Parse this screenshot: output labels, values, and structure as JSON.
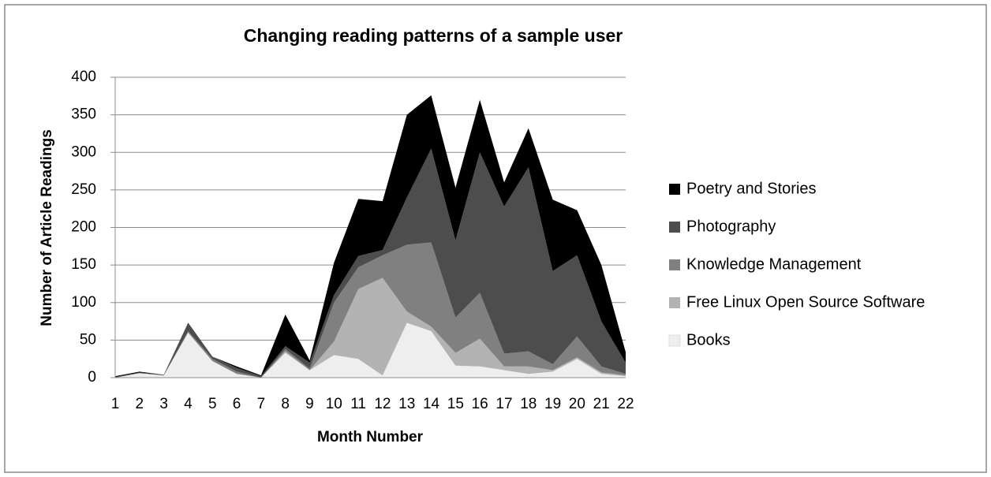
{
  "chart_data": {
    "type": "stacked-area",
    "title": "Changing reading patterns of a sample user",
    "x_label": "Month Number",
    "y_label": "Number of Article Readings",
    "categories": [
      "1",
      "2",
      "3",
      "4",
      "5",
      "6",
      "7",
      "8",
      "9",
      "10",
      "11",
      "12",
      "13",
      "14",
      "15",
      "16",
      "17",
      "18",
      "19",
      "20",
      "21",
      "22"
    ],
    "series": [
      {
        "name": "Books",
        "color": "#eeeeee",
        "values": [
          0,
          6,
          3,
          60,
          22,
          5,
          0,
          33,
          10,
          30,
          25,
          3,
          73,
          62,
          16,
          15,
          10,
          5,
          8,
          25,
          5,
          2
        ]
      },
      {
        "name": "Free Linux Open Source Software",
        "color": "#b3b3b3",
        "values": [
          0,
          0,
          0,
          0,
          0,
          0,
          0,
          2,
          0,
          18,
          93,
          130,
          15,
          6,
          17,
          37,
          5,
          10,
          2,
          2,
          2,
          1
        ]
      },
      {
        "name": "Knowledge Management",
        "color": "#808080",
        "values": [
          0,
          0,
          0,
          2,
          3,
          3,
          0,
          3,
          2,
          52,
          29,
          30,
          89,
          112,
          47,
          61,
          17,
          20,
          8,
          28,
          8,
          2
        ]
      },
      {
        "name": "Photography",
        "color": "#4d4d4d",
        "values": [
          1,
          1,
          1,
          10,
          3,
          5,
          2,
          4,
          8,
          10,
          15,
          7,
          63,
          125,
          103,
          187,
          196,
          245,
          124,
          108,
          60,
          15
        ]
      },
      {
        "name": "Poetry and Stories",
        "color": "#000000",
        "values": [
          1,
          1,
          0,
          1,
          0,
          2,
          1,
          42,
          3,
          43,
          76,
          65,
          110,
          71,
          70,
          70,
          32,
          52,
          95,
          60,
          75,
          14
        ]
      }
    ],
    "ylim": [
      0,
      400
    ],
    "yticks": [
      0,
      50,
      100,
      150,
      200,
      250,
      300,
      350,
      400
    ],
    "grid": true,
    "legend": "right"
  }
}
